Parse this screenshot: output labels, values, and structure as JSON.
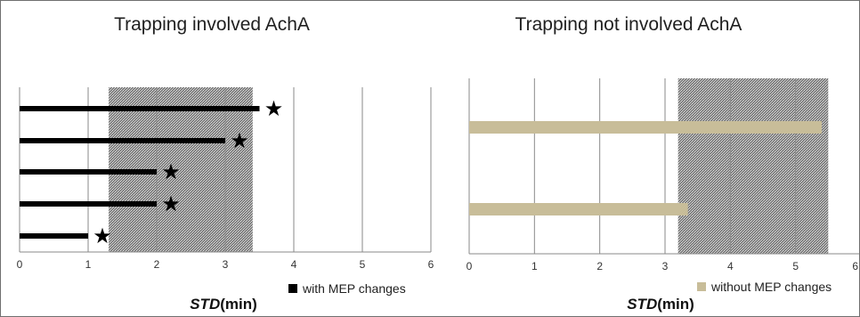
{
  "chart_data": [
    {
      "type": "bar",
      "orientation": "horizontal",
      "title": "Trapping involved AchA",
      "xlabel": "STD(min)",
      "xlabel_italic_part": "STD",
      "xlabel_rest": "(min)",
      "xlim": [
        0,
        6
      ],
      "xticks": [
        "0",
        "1",
        "2",
        "3",
        "4",
        "5",
        "6"
      ],
      "grid": true,
      "shaded_range": [
        1.3,
        3.4
      ],
      "series": [
        {
          "name": "with MEP changes",
          "color": "#000000",
          "values": [
            3.5,
            3.0,
            2.0,
            2.0,
            1.0
          ]
        }
      ],
      "markers": {
        "symbol": "★",
        "on_each_bar": true
      },
      "legend": {
        "placement": "bottom-right",
        "label": "with MEP changes",
        "color": "#000000"
      }
    },
    {
      "type": "bar",
      "orientation": "horizontal",
      "title": "Trapping not involved AchA",
      "xlabel": "STD(min)",
      "xlabel_italic_part": "STD",
      "xlabel_rest": "(min)",
      "xlim": [
        0,
        6
      ],
      "xticks": [
        "0",
        "1",
        "2",
        "3",
        "4",
        "5",
        "6"
      ],
      "grid": true,
      "shaded_range": [
        3.2,
        5.5
      ],
      "series": [
        {
          "name": "without MEP changes",
          "color": "#c8bd99",
          "values": [
            5.4,
            3.35
          ]
        }
      ],
      "legend": {
        "placement": "bottom-right",
        "label": "without MEP changes",
        "color": "#c8bd99"
      }
    }
  ]
}
